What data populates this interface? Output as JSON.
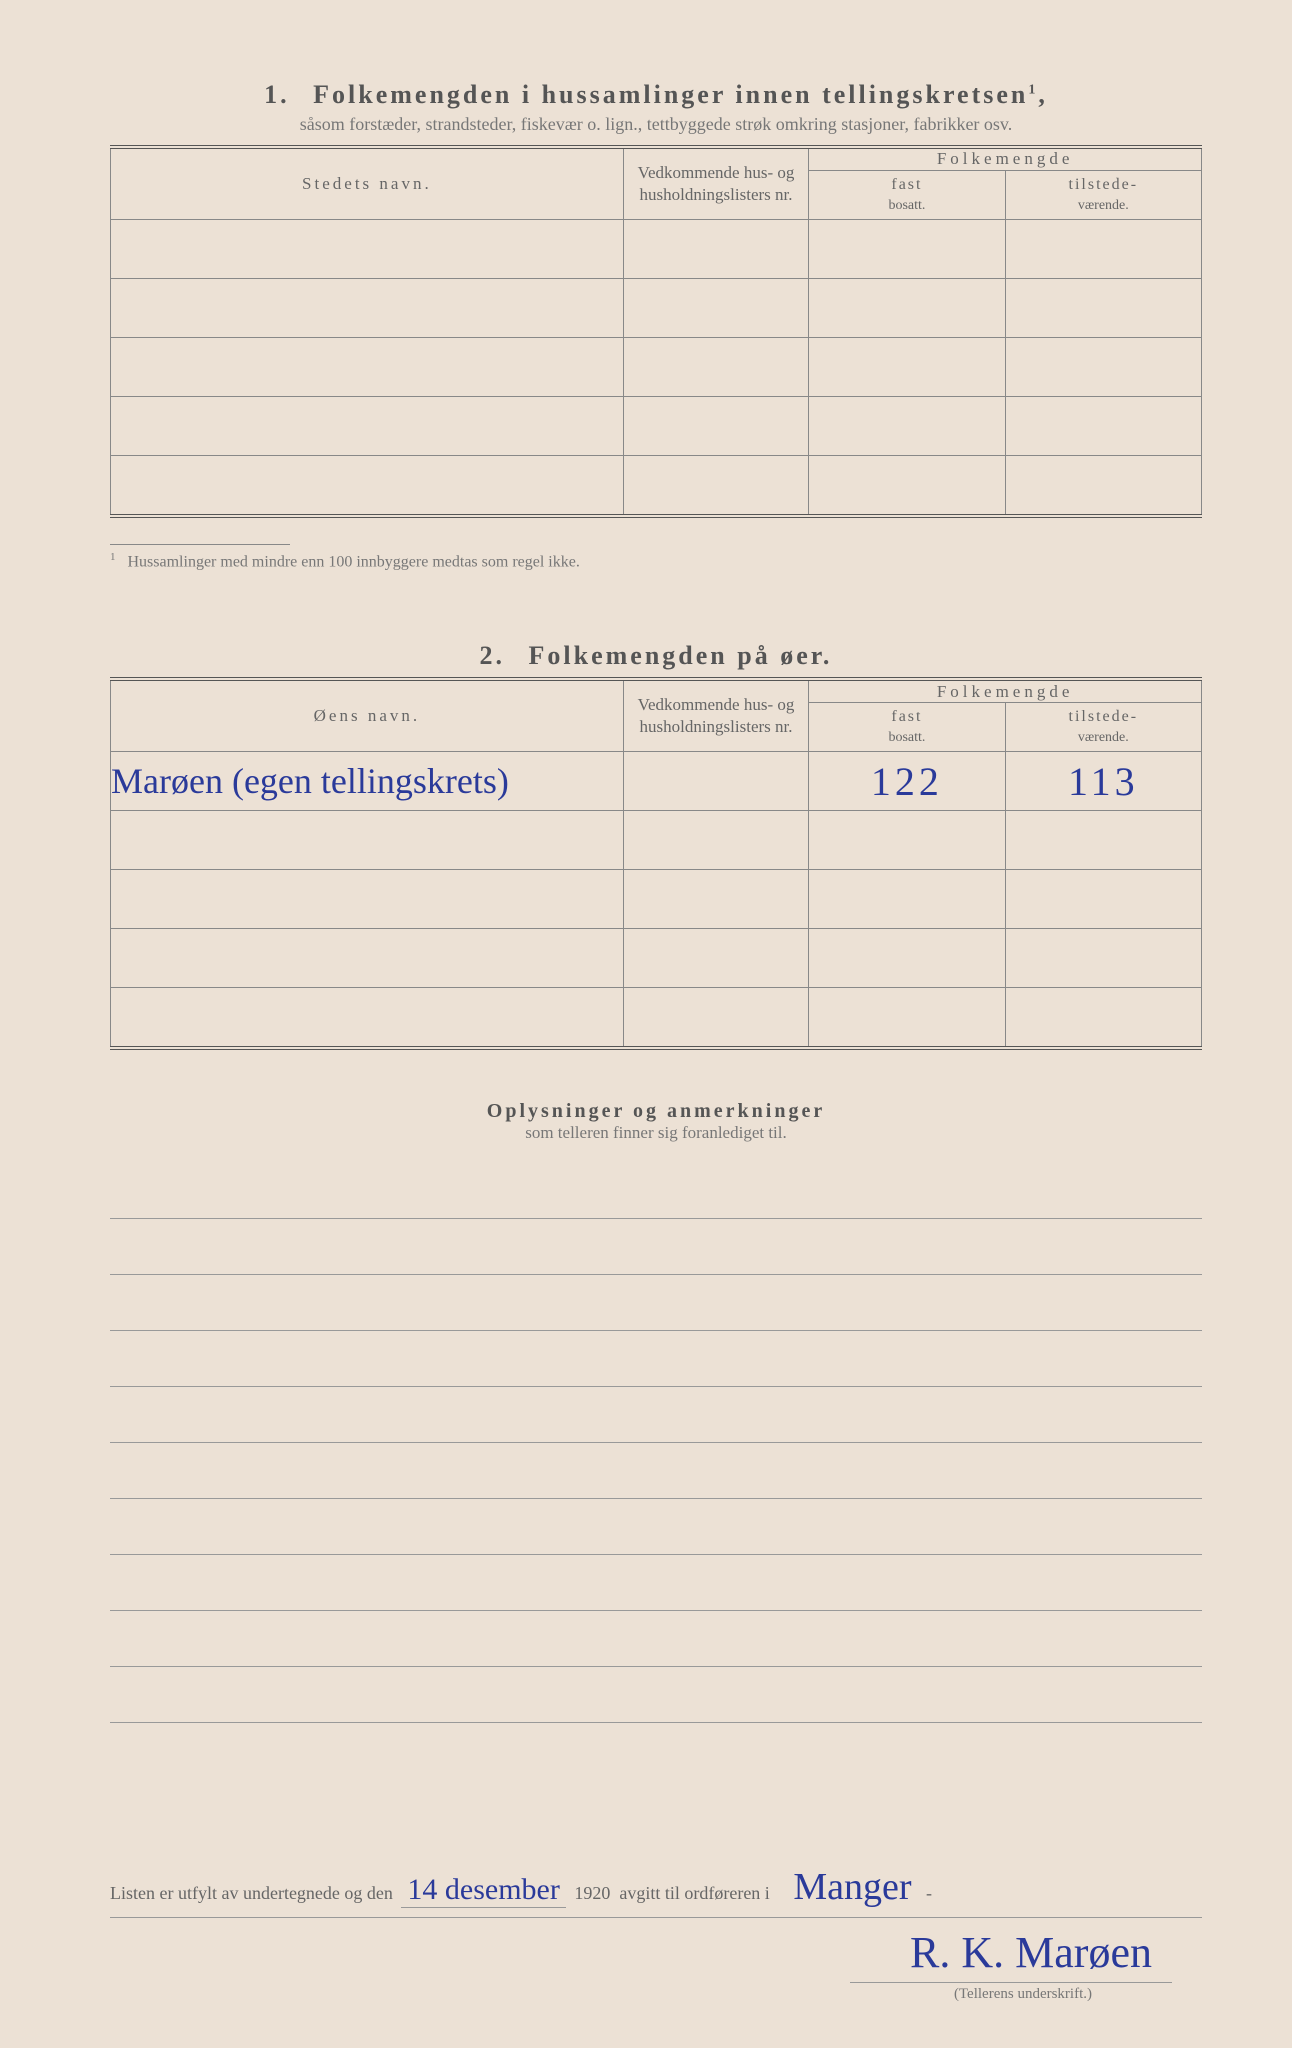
{
  "section1": {
    "number": "1.",
    "title": "Folkemengden i hussamlinger innen tellingskretsen",
    "title_sup": "1",
    "subtitle": "såsom forstæder, strandsteder, fiskevær o. lign., tettbyggede strøk omkring stasjoner, fabrikker osv.",
    "col_name": "Stedets navn.",
    "col_ved": "Vedkommende hus- og husholdningslisters nr.",
    "col_group": "Folkemengde",
    "col_fast_top": "fast",
    "col_fast_bot": "bosatt.",
    "col_til_top": "tilstede-",
    "col_til_bot": "værende.",
    "footnote_marker": "1",
    "footnote": "Hussamlinger med mindre enn 100 innbyggere medtas som regel ikke."
  },
  "section2": {
    "number": "2.",
    "title": "Folkemengden på øer.",
    "col_name": "Øens navn.",
    "col_ved": "Vedkommende hus- og husholdningslisters nr.",
    "col_group": "Folkemengde",
    "col_fast_top": "fast",
    "col_fast_bot": "bosatt.",
    "col_til_top": "tilstede-",
    "col_til_bot": "værende.",
    "row1_name": "Marøen (egen tellingskrets)",
    "row1_fast": "122",
    "row1_til": "113"
  },
  "remarks": {
    "title": "Oplysninger og anmerkninger",
    "subtitle": "som telleren finner sig foranlediget til."
  },
  "signature": {
    "prefix": "Listen er utfylt av undertegnede og den",
    "date": "14 desember",
    "year": "1920",
    "mid": "avgitt til ordføreren i",
    "place": "Manger",
    "name": "R. K. Marøen",
    "caption": "(Tellerens underskrift.)"
  },
  "colors": {
    "paper": "#ece1d5",
    "print": "#666",
    "ink": "#2a3a9a",
    "rule": "#888"
  }
}
